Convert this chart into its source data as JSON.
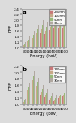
{
  "title_a": "a",
  "title_b": "b",
  "xlabel": "Energy (keV)",
  "ylabel": "DEF",
  "legend_labels": [
    "250nm",
    "100nm",
    "50nm",
    "30nm"
  ],
  "legend_colors": [
    "#c87878",
    "#c8a888",
    "#98b87a",
    "#b0a8a0"
  ],
  "energies": [
    "50",
    "100",
    "150",
    "200",
    "250",
    "300",
    "400",
    "500",
    "600",
    "1000"
  ],
  "data_a": {
    "250nm": [
      1.06,
      1.14,
      1.25,
      1.38,
      1.52,
      1.48,
      1.62,
      1.72,
      1.68,
      1.72
    ],
    "100nm": [
      1.09,
      1.2,
      1.34,
      1.5,
      1.65,
      1.6,
      1.74,
      1.84,
      1.79,
      1.83
    ],
    "50nm": [
      1.13,
      1.28,
      1.46,
      1.64,
      1.8,
      1.74,
      1.9,
      2.02,
      1.94,
      1.98
    ],
    "30nm": [
      1.18,
      1.38,
      1.6,
      1.8,
      1.98,
      1.92,
      2.08,
      2.22,
      2.12,
      2.18
    ]
  },
  "data_b": {
    "250nm": [
      1.04,
      1.38,
      1.65,
      1.48,
      1.3,
      1.22,
      1.14,
      1.1,
      1.2,
      1.24
    ],
    "100nm": [
      1.07,
      1.46,
      1.75,
      1.58,
      1.38,
      1.28,
      1.2,
      1.14,
      1.24,
      1.3
    ],
    "50nm": [
      1.11,
      1.56,
      1.88,
      1.7,
      1.48,
      1.36,
      1.26,
      1.2,
      1.3,
      1.36
    ],
    "30nm": [
      1.16,
      1.68,
      2.02,
      1.84,
      1.6,
      1.48,
      1.36,
      1.27,
      1.38,
      1.45
    ]
  },
  "ylim_a": [
    1.0,
    2.4
  ],
  "ylim_b": [
    1.0,
    2.2
  ],
  "yticks_a": [
    1.0,
    1.2,
    1.4,
    1.6,
    1.8,
    2.0,
    2.2,
    2.4
  ],
  "yticks_b": [
    1.0,
    1.2,
    1.4,
    1.6,
    1.8,
    2.0,
    2.2
  ],
  "background_color": "#dcdcdc",
  "plot_bg_color": "#d8d8d8",
  "bar_width": 0.75,
  "tick_fontsize": 3.2,
  "label_fontsize": 3.8,
  "legend_fontsize": 2.8,
  "title_fontsize": 5.0
}
